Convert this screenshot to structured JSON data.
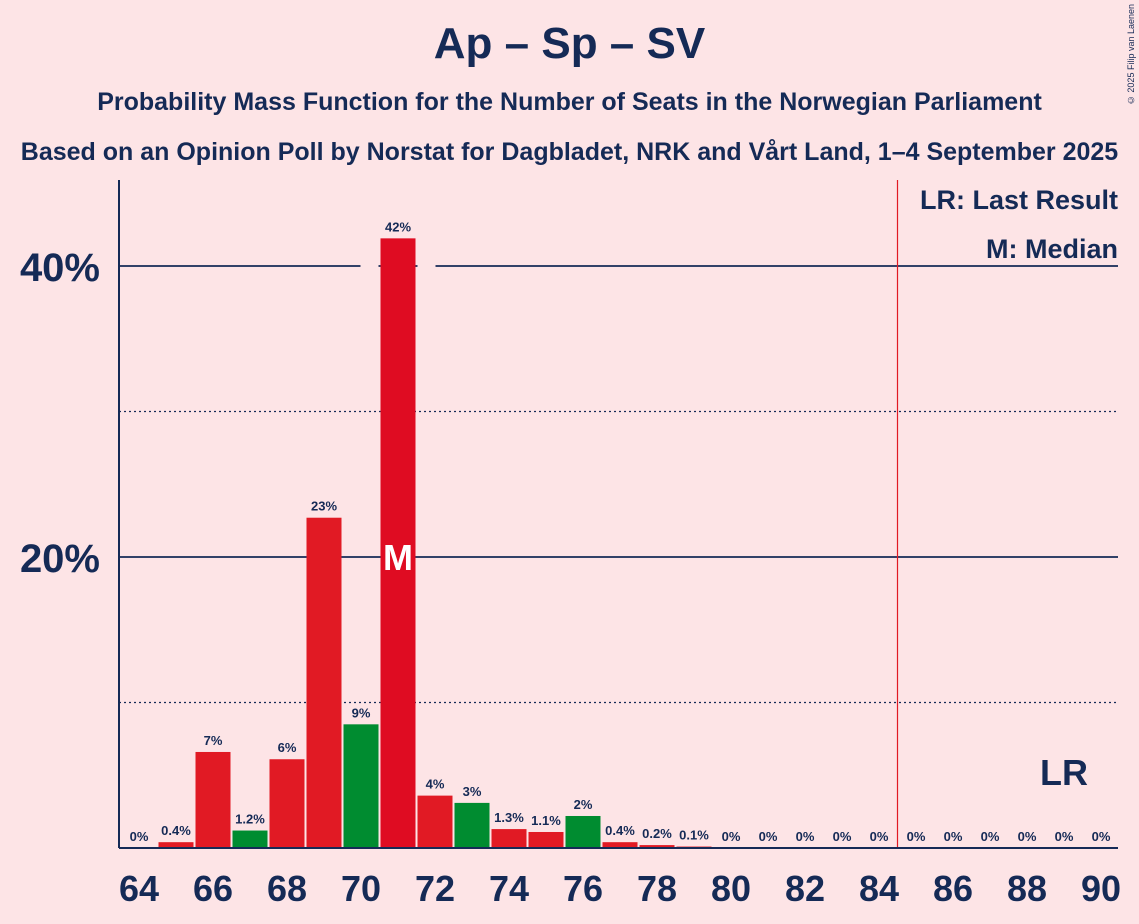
{
  "title": "Ap – Sp – SV",
  "subtitle": "Probability Mass Function for the Number of Seats in the Norwegian Parliament",
  "subtitle2": "Based on an Opinion Poll by Norstat for Dagbladet, NRK and Vårt Land, 1–4 September 2025",
  "copyright": "© 2025 Filip van Laenen",
  "legend": {
    "last_result": "LR: Last Result",
    "median": "M: Median"
  },
  "colors": {
    "background": "#fde4e6",
    "text": "#152a56",
    "red_bar": "#e11a24",
    "dark_red_bar": "#df0c22",
    "green_bar": "#008c30",
    "last_result_line": "#e11a24"
  },
  "chart_data": {
    "type": "bar",
    "x": [
      64,
      65,
      66,
      67,
      68,
      69,
      70,
      71,
      72,
      73,
      74,
      75,
      76,
      77,
      78,
      79,
      80,
      81,
      82,
      83,
      84,
      85,
      86,
      87,
      88,
      89,
      90
    ],
    "values": [
      0,
      0.4,
      6.6,
      1.2,
      6.1,
      22.7,
      8.5,
      41.9,
      3.6,
      3.1,
      1.3,
      1.1,
      2.2,
      0.4,
      0.2,
      0.1,
      0,
      0,
      0,
      0,
      0,
      0,
      0,
      0,
      0,
      0,
      0
    ],
    "data_labels": [
      "0%",
      "0.4%",
      "7%",
      "1.2%",
      "6%",
      "23%",
      "9%",
      "42%",
      "4%",
      "3%",
      "1.3%",
      "1.1%",
      "2%",
      "0.4%",
      "0.2%",
      "0.1%",
      "0%",
      "0%",
      "0%",
      "0%",
      "0%",
      "0%",
      "0%",
      "0%",
      "0%",
      "0%",
      "0%"
    ],
    "bar_colors": [
      "red",
      "red",
      "red",
      "green",
      "red",
      "red",
      "green",
      "darkred",
      "red",
      "green",
      "red",
      "red",
      "green",
      "red",
      "red",
      "red",
      "red",
      "red",
      "red",
      "red",
      "red",
      "red",
      "red",
      "red",
      "red",
      "red",
      "red"
    ],
    "x_tick_labels": [
      "64",
      "66",
      "68",
      "70",
      "72",
      "74",
      "76",
      "78",
      "80",
      "82",
      "84",
      "86",
      "88",
      "90"
    ],
    "y_tick_labels": [
      {
        "value": 20,
        "label": "20%"
      },
      {
        "value": 40,
        "label": "40%"
      }
    ],
    "y_dotted_lines": [
      10,
      30
    ],
    "ylim": [
      0,
      45.5
    ],
    "xlim": [
      63.5,
      90.5
    ],
    "median": 71,
    "median_label": "M",
    "majority_line": 84.5,
    "last_result_label": "LR",
    "last_result_x": 89,
    "grid": true,
    "legend_position": "top-right"
  }
}
